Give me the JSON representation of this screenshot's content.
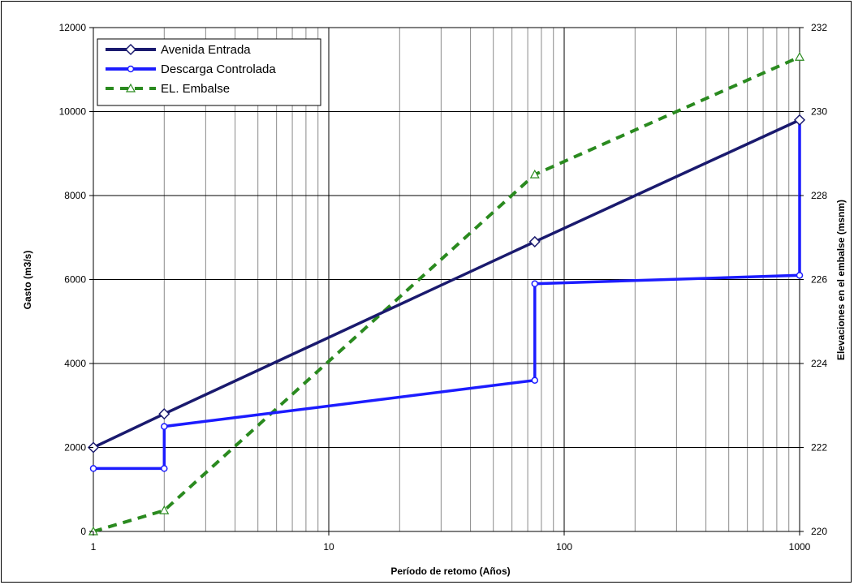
{
  "chart_data": {
    "type": "line",
    "x_scale": "log",
    "xlim": [
      1,
      1000
    ],
    "ylim": [
      0,
      12000
    ],
    "y2lim": [
      220,
      232
    ],
    "xlabel": "Período de retomo (Años)",
    "ylabel": "Gasto (m3/s)",
    "y2label": "Elevaciones en el embalse (msnm)",
    "x_ticks": [
      "1",
      "10",
      "100",
      "1000"
    ],
    "y_ticks": [
      "0",
      "2000",
      "4000",
      "6000",
      "8000",
      "10000",
      "12000"
    ],
    "y2_ticks": [
      "220",
      "222",
      "224",
      "226",
      "228",
      "230",
      "232"
    ],
    "grid": true,
    "legend_position": "top-left",
    "series": [
      {
        "name": "Avenida Entrada",
        "axis": "left",
        "color": "#1a1a6e",
        "style": "solid",
        "marker": "diamond",
        "points": [
          [
            1,
            2000
          ],
          [
            2,
            2800
          ],
          [
            75,
            6900
          ],
          [
            1000,
            9800
          ]
        ]
      },
      {
        "name": "Descarga Controlada",
        "axis": "left",
        "color": "#1c1cff",
        "style": "solid",
        "marker": "circle",
        "points": [
          [
            1,
            1500
          ],
          [
            2,
            1500
          ],
          [
            2,
            2500
          ],
          [
            75,
            3600
          ],
          [
            75,
            5900
          ],
          [
            1000,
            6100
          ],
          [
            1000,
            9800
          ]
        ]
      },
      {
        "name": "EL. Embalse",
        "axis": "right",
        "color": "#2a8a1f",
        "style": "dashed",
        "marker": "triangle",
        "points": [
          [
            1,
            220
          ],
          [
            2,
            220.5
          ],
          [
            75,
            228.5
          ],
          [
            1000,
            231.3
          ]
        ]
      }
    ]
  }
}
